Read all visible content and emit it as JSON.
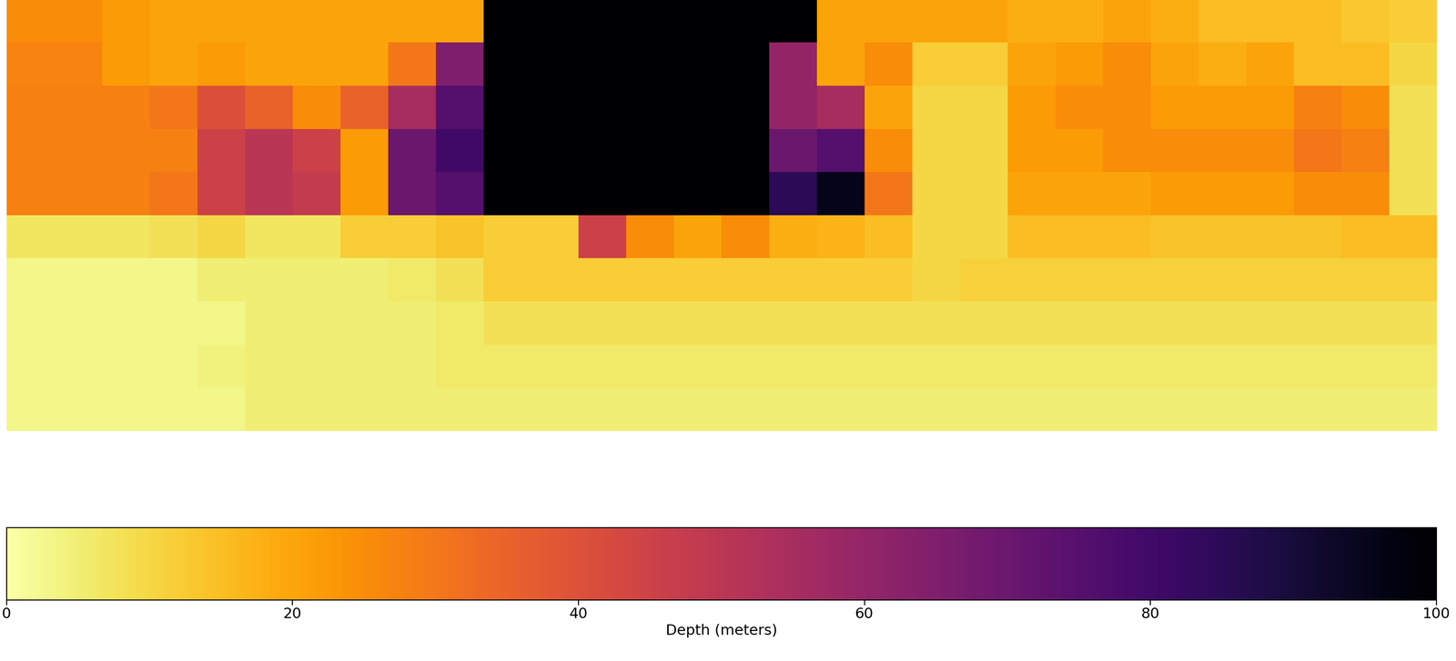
{
  "chart_data": {
    "type": "heatmap",
    "tick_labels": false,
    "cells": [
      [
        25,
        25,
        22,
        20,
        20,
        20,
        20,
        20,
        20,
        20,
        100,
        100,
        100,
        100,
        100,
        100,
        100,
        20,
        20,
        20,
        20,
        18,
        18,
        20,
        18,
        15,
        15,
        15,
        13,
        12
      ],
      [
        27,
        27,
        22,
        20,
        22,
        20,
        20,
        20,
        30,
        65,
        100,
        100,
        100,
        100,
        100,
        100,
        60,
        20,
        25,
        12,
        12,
        20,
        22,
        25,
        20,
        18,
        20,
        15,
        15,
        10
      ],
      [
        28,
        28,
        28,
        30,
        40,
        35,
        25,
        35,
        55,
        75,
        100,
        100,
        100,
        100,
        100,
        100,
        60,
        55,
        20,
        10,
        10,
        22,
        25,
        25,
        22,
        22,
        22,
        28,
        25,
        8
      ],
      [
        28,
        28,
        28,
        28,
        45,
        50,
        45,
        22,
        70,
        80,
        100,
        100,
        100,
        100,
        100,
        100,
        70,
        75,
        25,
        10,
        10,
        22,
        22,
        25,
        25,
        25,
        25,
        30,
        28,
        8
      ],
      [
        28,
        28,
        28,
        30,
        45,
        50,
        48,
        22,
        70,
        75,
        100,
        100,
        100,
        100,
        100,
        100,
        85,
        95,
        30,
        10,
        10,
        20,
        20,
        20,
        22,
        22,
        22,
        25,
        25,
        8
      ],
      [
        7,
        7,
        7,
        8,
        10,
        7,
        7,
        12,
        12,
        14,
        12,
        12,
        45,
        25,
        20,
        25,
        18,
        17,
        15,
        10,
        10,
        15,
        15,
        15,
        14,
        14,
        14,
        14,
        15,
        15
      ],
      [
        3,
        3,
        3,
        3,
        5,
        5,
        5,
        5,
        6,
        8,
        12,
        12,
        12,
        12,
        12,
        12,
        12,
        12,
        12,
        10,
        11,
        11,
        11,
        11,
        11,
        11,
        11,
        11,
        11,
        11
      ],
      [
        3,
        3,
        3,
        3,
        3,
        5,
        5,
        5,
        5,
        6,
        8,
        8,
        8,
        8,
        8,
        8,
        8,
        8,
        8,
        8,
        8,
        8,
        8,
        8,
        8,
        8,
        8,
        8,
        8,
        8
      ],
      [
        3,
        3,
        3,
        3,
        4,
        5,
        5,
        5,
        5,
        6,
        6,
        6,
        6,
        6,
        6,
        6,
        6,
        6,
        6,
        6,
        6,
        6,
        6,
        6,
        6,
        6,
        6,
        6,
        6,
        6
      ],
      [
        3,
        3,
        3,
        3,
        3,
        5,
        5,
        5,
        5,
        5,
        5,
        5,
        5,
        5,
        5,
        5,
        5,
        5,
        5,
        5,
        5,
        5,
        5,
        5,
        5,
        5,
        5,
        5,
        5,
        5
      ]
    ],
    "colorbar_range": [
      0,
      100
    ],
    "colorbar_ticks": [
      0,
      20,
      40,
      60,
      80,
      100
    ],
    "colorbar_label": "Depth (meters)"
  }
}
